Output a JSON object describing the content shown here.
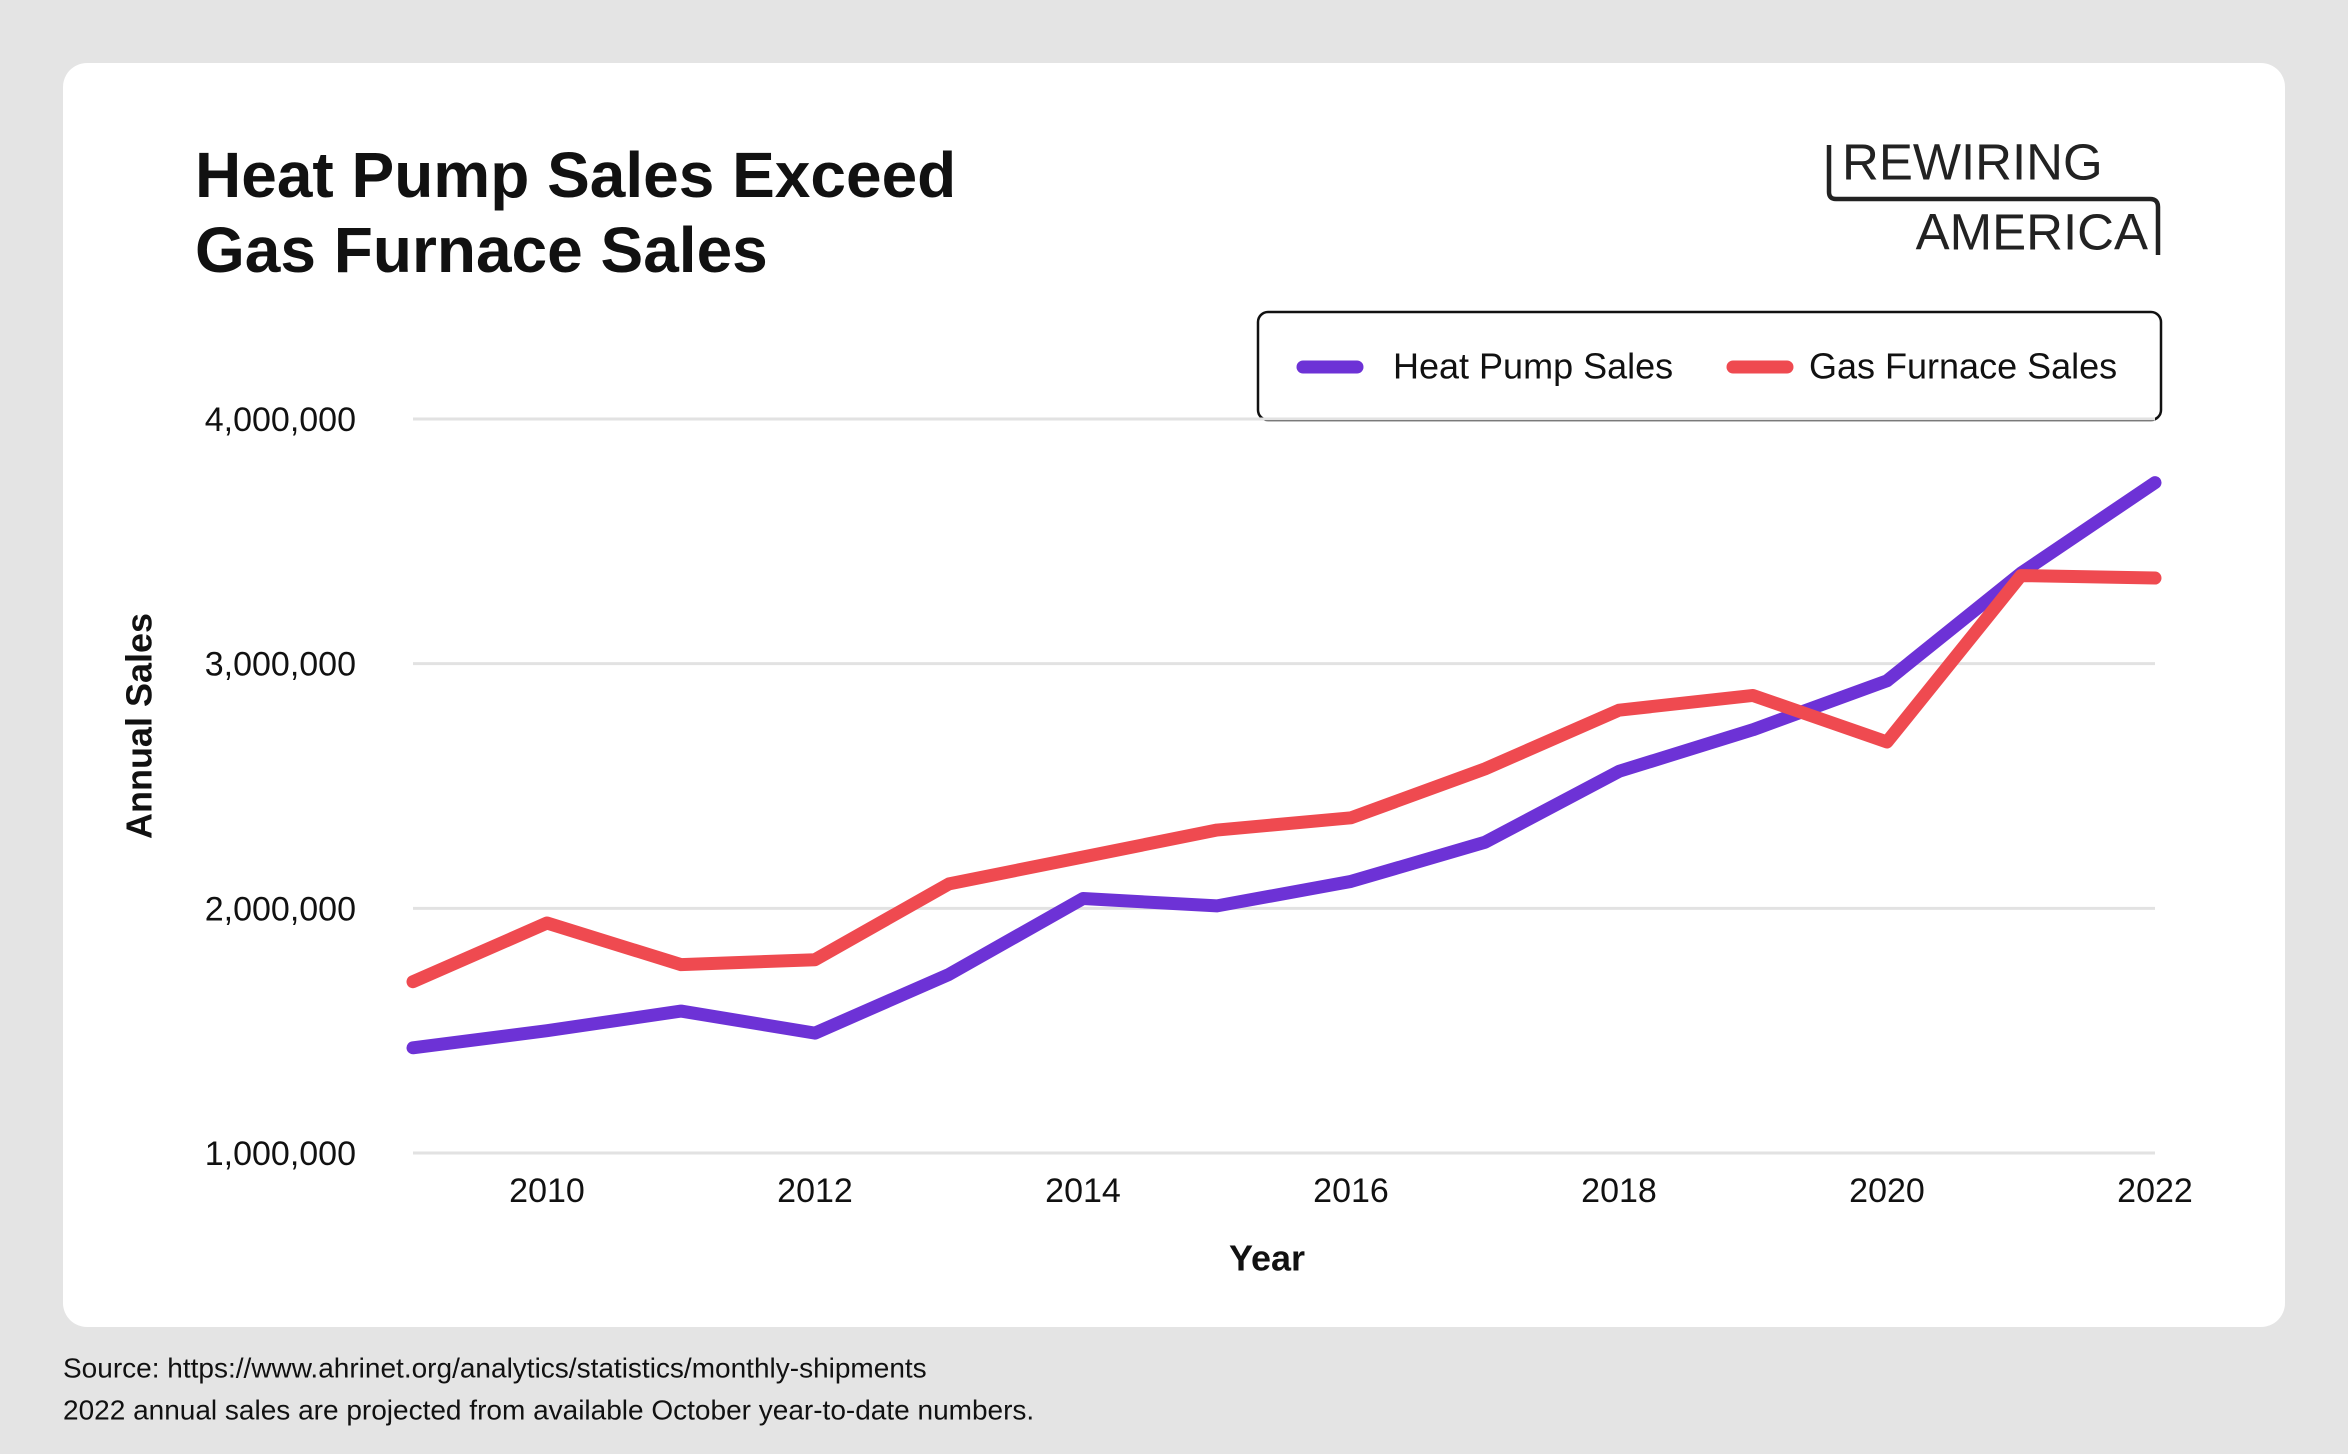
{
  "chart_data": {
    "type": "line",
    "title": [
      "Heat Pump Sales Exceed",
      "Gas Furnace Sales"
    ],
    "logo": [
      "REWIRING",
      "AMERICA"
    ],
    "x_label": "Year",
    "y_label": "Annual Sales",
    "x": [
      2009,
      2010,
      2011,
      2012,
      2013,
      2014,
      2015,
      2016,
      2017,
      2018,
      2019,
      2020,
      2021,
      2022
    ],
    "series": [
      {
        "name": "Heat Pump Sales",
        "color": "#6d32d6",
        "values": [
          1430000,
          1500000,
          1580000,
          1490000,
          1730000,
          2040000,
          2010000,
          2110000,
          2270000,
          2560000,
          2730000,
          2930000,
          3370000,
          3740000
        ]
      },
      {
        "name": "Gas Furnace Sales",
        "color": "#ef4a50",
        "values": [
          1700000,
          1940000,
          1770000,
          1790000,
          2100000,
          2210000,
          2320000,
          2370000,
          2570000,
          2810000,
          2870000,
          2680000,
          3360000,
          3350000
        ]
      }
    ],
    "xlim": [
      2009,
      2022
    ],
    "xticks": [
      2010,
      2012,
      2014,
      2016,
      2018,
      2020,
      2022
    ],
    "ylim": [
      1000000,
      4000000
    ],
    "yticks": [
      {
        "value": 1000000,
        "label": "1,000,000"
      },
      {
        "value": 2000000,
        "label": "2,000,000"
      },
      {
        "value": 3000000,
        "label": "3,000,000"
      },
      {
        "value": 4000000,
        "label": "4,000,000"
      }
    ],
    "grid": true,
    "legend": "top-right",
    "notes": [
      "Source: https://www.ahrinet.org/analytics/statistics/monthly-shipments",
      "2022 annual sales are projected from available October year-to-date numbers."
    ]
  }
}
